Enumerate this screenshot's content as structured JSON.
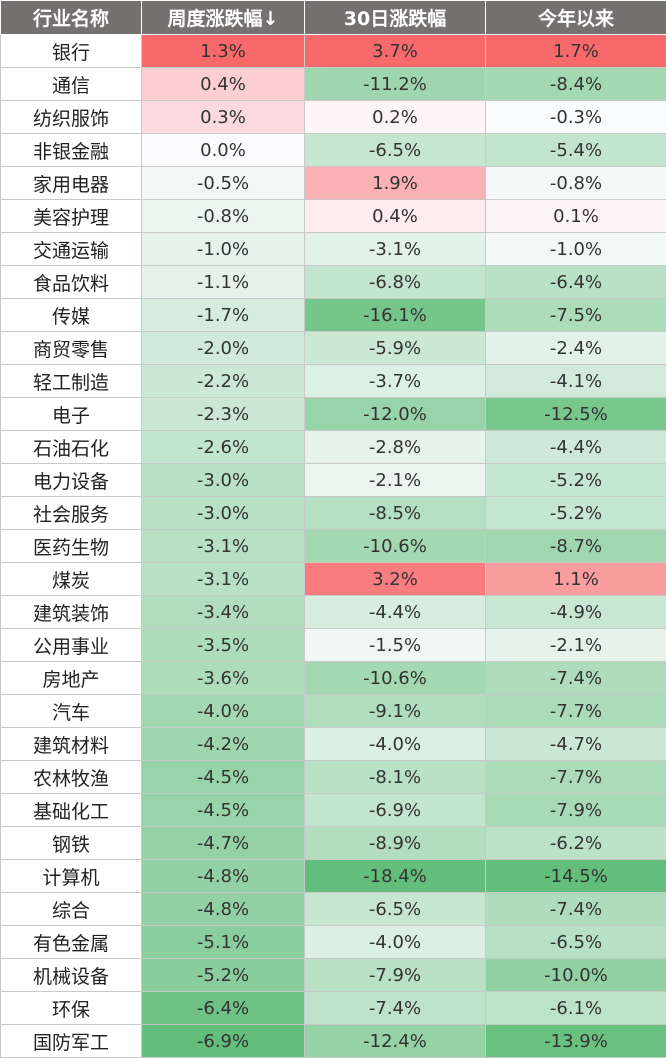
{
  "headers": [
    "行业名称",
    "周度涨跌幅↓",
    "30日涨跌幅",
    "今年以来"
  ],
  "rows": [
    {
      "name": "银行",
      "week": 1.3,
      "d30": 3.7,
      "ytd": 1.7
    },
    {
      "name": "通信",
      "week": 0.4,
      "d30": -11.2,
      "ytd": -8.4
    },
    {
      "name": "纺织服饰",
      "week": 0.3,
      "d30": 0.2,
      "ytd": -0.3
    },
    {
      "name": "非银金融",
      "week": 0.0,
      "d30": -6.5,
      "ytd": -5.4
    },
    {
      "name": "家用电器",
      "week": -0.5,
      "d30": 1.9,
      "ytd": -0.8
    },
    {
      "name": "美容护理",
      "week": -0.8,
      "d30": 0.4,
      "ytd": 0.1
    },
    {
      "name": "交通运输",
      "week": -1.0,
      "d30": -3.1,
      "ytd": -1.0
    },
    {
      "name": "食品饮料",
      "week": -1.1,
      "d30": -6.8,
      "ytd": -6.4
    },
    {
      "name": "传媒",
      "week": -1.7,
      "d30": -16.1,
      "ytd": -7.5
    },
    {
      "name": "商贸零售",
      "week": -2.0,
      "d30": -5.9,
      "ytd": -2.4
    },
    {
      "name": "轻工制造",
      "week": -2.2,
      "d30": -3.7,
      "ytd": -4.1
    },
    {
      "name": "电子",
      "week": -2.3,
      "d30": -12.0,
      "ytd": -12.5
    },
    {
      "name": "石油石化",
      "week": -2.6,
      "d30": -2.8,
      "ytd": -4.4
    },
    {
      "name": "电力设备",
      "week": -3.0,
      "d30": -2.1,
      "ytd": -5.2
    },
    {
      "name": "社会服务",
      "week": -3.0,
      "d30": -8.5,
      "ytd": -5.2
    },
    {
      "name": "医药生物",
      "week": -3.1,
      "d30": -10.6,
      "ytd": -8.7
    },
    {
      "name": "煤炭",
      "week": -3.1,
      "d30": 3.2,
      "ytd": 1.1
    },
    {
      "name": "建筑装饰",
      "week": -3.4,
      "d30": -4.4,
      "ytd": -4.9
    },
    {
      "name": "公用事业",
      "week": -3.5,
      "d30": -1.5,
      "ytd": -2.1
    },
    {
      "name": "房地产",
      "week": -3.6,
      "d30": -10.6,
      "ytd": -7.4
    },
    {
      "name": "汽车",
      "week": -4.0,
      "d30": -9.1,
      "ytd": -7.7
    },
    {
      "name": "建筑材料",
      "week": -4.2,
      "d30": -4.0,
      "ytd": -4.7
    },
    {
      "name": "农林牧渔",
      "week": -4.5,
      "d30": -8.1,
      "ytd": -7.7
    },
    {
      "name": "基础化工",
      "week": -4.5,
      "d30": -6.9,
      "ytd": -7.9
    },
    {
      "name": "钢铁",
      "week": -4.7,
      "d30": -8.9,
      "ytd": -6.2
    },
    {
      "name": "计算机",
      "week": -4.8,
      "d30": -18.4,
      "ytd": -14.5
    },
    {
      "name": "综合",
      "week": -4.8,
      "d30": -6.5,
      "ytd": -7.4
    },
    {
      "name": "有色金属",
      "week": -5.1,
      "d30": -4.0,
      "ytd": -6.5
    },
    {
      "name": "机械设备",
      "week": -5.2,
      "d30": -7.9,
      "ytd": -10.0
    },
    {
      "name": "环保",
      "week": -6.4,
      "d30": -7.4,
      "ytd": -6.1
    },
    {
      "name": "国防军工",
      "week": -6.9,
      "d30": -12.4,
      "ytd": -13.9
    }
  ],
  "colors": {
    "header_bg": "#767171",
    "positive_max": "#f8696b",
    "negative_max": "#63be7b",
    "neutral": "#fcfcff"
  }
}
